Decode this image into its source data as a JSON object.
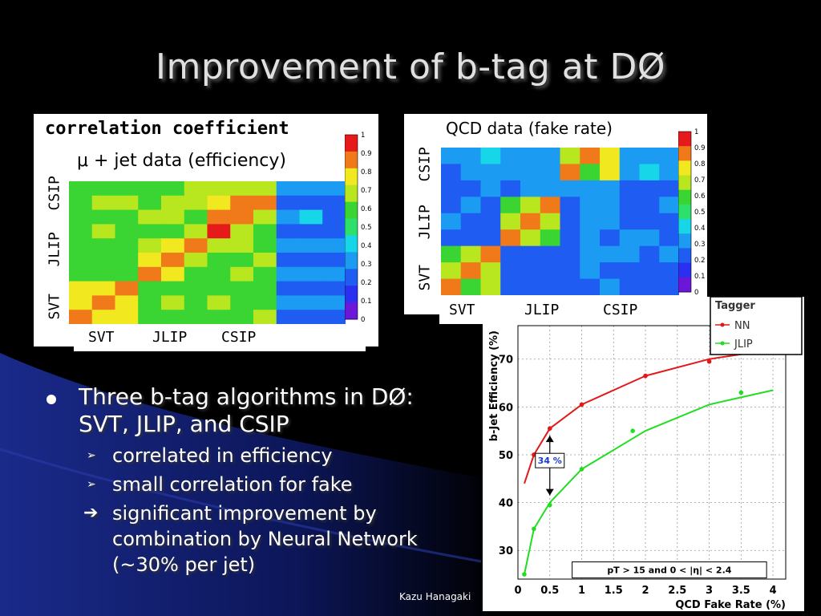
{
  "slide": {
    "title": "Improvement of b-tag at DØ",
    "credit": "Kazu Hanagaki",
    "bullets": [
      {
        "text": "Three b-tag algorithms in DØ: SVT, JLIP, and CSIP",
        "sub": [
          {
            "marker": "➢",
            "text": "correlated in efficiency"
          },
          {
            "marker": "➢",
            "text": "small correlation for fake"
          },
          {
            "marker": "➔",
            "text": "significant improvement by combination by Neural Network (~30% per jet)"
          }
        ]
      }
    ]
  },
  "colors": {
    "background": "#000000",
    "swoosh": "#14206e",
    "nn": "#e11919",
    "jlip": "#22dd22",
    "title": "#e0e0e0"
  },
  "chart_data": [
    {
      "type": "heatmap",
      "title": "correlation coefficient",
      "subtitle": "μ + jet data (efficiency)",
      "x_labels": [
        "SVT",
        "JLIP",
        "CSIP"
      ],
      "y_labels": [
        "SVT",
        "JLIP",
        "CSIP"
      ],
      "colorbar_ticks": [
        "1",
        "0.9",
        "0.8",
        "0.7",
        "0.6",
        "0.5",
        "0.4",
        "0.3",
        "0.2",
        "0.1",
        "0"
      ],
      "zlim": [
        0,
        1
      ],
      "values": [
        [
          0.6,
          0.6,
          0.6,
          0.6,
          0.6,
          0.65,
          0.7,
          0.7,
          0.7,
          0.25,
          0.25,
          0.25
        ],
        [
          0.6,
          0.65,
          0.65,
          0.6,
          0.65,
          0.65,
          0.75,
          0.9,
          0.85,
          0.15,
          0.15,
          0.15
        ],
        [
          0.6,
          0.6,
          0.6,
          0.65,
          0.65,
          0.6,
          0.9,
          0.85,
          0.7,
          0.3,
          0.35,
          0.2
        ],
        [
          0.6,
          0.65,
          0.6,
          0.6,
          0.6,
          0.65,
          1.0,
          0.7,
          0.6,
          0.2,
          0.2,
          0.2
        ],
        [
          0.55,
          0.6,
          0.6,
          0.7,
          0.8,
          0.9,
          0.65,
          0.65,
          0.6,
          0.25,
          0.25,
          0.25
        ],
        [
          0.6,
          0.55,
          0.6,
          0.8,
          0.9,
          0.7,
          0.6,
          0.6,
          0.65,
          0.2,
          0.2,
          0.2
        ],
        [
          0.6,
          0.6,
          0.6,
          0.9,
          0.75,
          0.6,
          0.6,
          0.65,
          0.6,
          0.25,
          0.25,
          0.25
        ],
        [
          0.75,
          0.8,
          0.9,
          0.6,
          0.6,
          0.6,
          0.6,
          0.6,
          0.6,
          0.2,
          0.2,
          0.2
        ],
        [
          0.8,
          0.9,
          0.8,
          0.6,
          0.65,
          0.6,
          0.65,
          0.6,
          0.6,
          0.25,
          0.25,
          0.25
        ],
        [
          0.9,
          0.8,
          0.75,
          0.6,
          0.6,
          0.55,
          0.6,
          0.6,
          0.65,
          0.2,
          0.2,
          0.2
        ]
      ]
    },
    {
      "type": "heatmap",
      "subtitle": "QCD data (fake rate)",
      "x_labels": [
        "SVT",
        "JLIP",
        "CSIP"
      ],
      "y_labels": [
        "SVT",
        "JLIP",
        "CSIP"
      ],
      "colorbar_ticks": [
        "1",
        "0.9",
        "0.8",
        "0.7",
        "0.6",
        "0.5",
        "0.4",
        "0.3",
        "0.2",
        "0.1",
        "0"
      ],
      "zlim": [
        0,
        1
      ],
      "values": [
        [
          0.25,
          0.3,
          0.35,
          0.25,
          0.3,
          0.3,
          0.65,
          0.85,
          0.75,
          0.25,
          0.25,
          0.25
        ],
        [
          0.2,
          0.25,
          0.3,
          0.25,
          0.25,
          0.3,
          0.9,
          0.6,
          0.8,
          0.25,
          0.35,
          0.25
        ],
        [
          0.2,
          0.2,
          0.25,
          0.2,
          0.3,
          0.25,
          0.25,
          0.25,
          0.25,
          0.2,
          0.2,
          0.2
        ],
        [
          0.2,
          0.25,
          0.2,
          0.6,
          0.7,
          0.9,
          0.2,
          0.3,
          0.25,
          0.2,
          0.2,
          0.25
        ],
        [
          0.25,
          0.2,
          0.2,
          0.7,
          0.9,
          0.7,
          0.2,
          0.25,
          0.25,
          0.2,
          0.2,
          0.2
        ],
        [
          0.2,
          0.2,
          0.2,
          0.9,
          0.65,
          0.6,
          0.2,
          0.25,
          0.2,
          0.25,
          0.25,
          0.2
        ],
        [
          0.6,
          0.7,
          0.9,
          0.2,
          0.2,
          0.2,
          0.2,
          0.25,
          0.3,
          0.25,
          0.2,
          0.25
        ],
        [
          0.65,
          0.9,
          0.7,
          0.2,
          0.2,
          0.2,
          0.2,
          0.25,
          0.2,
          0.2,
          0.2,
          0.2
        ],
        [
          0.9,
          0.6,
          0.65,
          0.2,
          0.2,
          0.2,
          0.2,
          0.2,
          0.25,
          0.2,
          0.2,
          0.2
        ]
      ]
    },
    {
      "type": "line",
      "xlabel": "QCD Fake Rate (%)",
      "ylabel": "b-Jet Efficiency (%)",
      "xlim": [
        0,
        4.2
      ],
      "ylim": [
        24,
        77
      ],
      "x_ticks": [
        "0",
        "0.5",
        "1",
        "1.5",
        "2",
        "2.5",
        "3",
        "3.5",
        "4"
      ],
      "y_ticks": [
        "30",
        "40",
        "50",
        "60",
        "70"
      ],
      "grid": true,
      "legend": {
        "title": "Tagger",
        "position": "top-right"
      },
      "series": [
        {
          "name": "NN",
          "x": [
            0.1,
            0.25,
            0.5,
            1.0,
            2.0,
            3.0,
            4.0
          ],
          "y": [
            44,
            50,
            55.5,
            60.5,
            66.5,
            70,
            72
          ],
          "points_x": [
            0.25,
            0.5,
            1.0,
            2.0,
            3.0,
            4.0
          ],
          "points_y": [
            50,
            55.5,
            60.5,
            66.5,
            69.5,
            72
          ]
        },
        {
          "name": "JLIP",
          "x": [
            0.1,
            0.25,
            0.5,
            1.0,
            2.0,
            3.0,
            3.5,
            4.0
          ],
          "y": [
            25,
            34.5,
            40,
            47,
            55,
            60.5,
            62,
            63.5
          ],
          "points_x": [
            0.1,
            0.25,
            0.5,
            1.0,
            1.8,
            3.5
          ],
          "points_y": [
            25,
            34.5,
            39.5,
            47,
            55,
            63
          ]
        }
      ],
      "annotations": [
        {
          "text": "34 %",
          "x": 0.5,
          "y_from": 41.5,
          "y_to": 54
        },
        {
          "text": "pT > 15 and 0 < |η| < 2.4"
        }
      ]
    }
  ]
}
